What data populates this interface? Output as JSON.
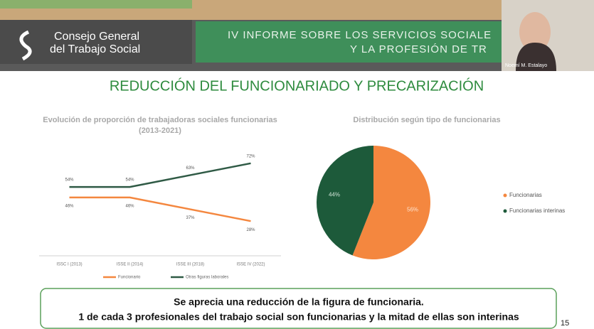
{
  "header": {
    "logo_lines": [
      "Consejo General",
      "del Trabajo Social"
    ],
    "banner_lines": [
      "IV INFORME SOBRE LOS SERVICIOS SOCIALE",
      "Y LA PROFESIÓN DE TR"
    ],
    "participant_name": "Noemí M. Estalayo"
  },
  "slide": {
    "title": "REDUCCIÓN DEL FUNCIONARIADO Y PRECARIZACIÓN",
    "conclusion_lines": [
      "Se aprecia una reducción de la figura de funcionaria.",
      "1 de cada 3 profesionales del trabajo social son funcionarias y la mitad de ellas son interinas"
    ],
    "page_number": 15
  },
  "chart_data": [
    {
      "type": "line",
      "title": "Evolución de proporción de trabajadoras sociales funcionarias (2013-2021)",
      "categories": [
        "ISSC I (2013)",
        "ISSE II (2014)",
        "ISSE III (2018)",
        "ISSE IV (2022)"
      ],
      "series": [
        {
          "name": "Funcionario",
          "color": "#f4873f",
          "values": [
            46,
            46,
            37,
            28
          ],
          "value_labels": [
            "46%",
            "46%",
            "37%",
            "28%"
          ]
        },
        {
          "name": "Otras figuras laborales",
          "color": "#2f5a45",
          "values": [
            54,
            54,
            63,
            72
          ],
          "value_labels": [
            "54%",
            "54%",
            "63%",
            "72%"
          ]
        }
      ],
      "legend": "bottom"
    },
    {
      "type": "pie",
      "title": "Distribución según tipo de funcionarias",
      "categories": [
        "Funcionarias",
        "Funcionarias interinas"
      ],
      "values": [
        56,
        44
      ],
      "value_labels": [
        "56%",
        "44%"
      ],
      "colors": [
        "#f4873f",
        "#1d5a3a"
      ],
      "legend": "right"
    }
  ]
}
